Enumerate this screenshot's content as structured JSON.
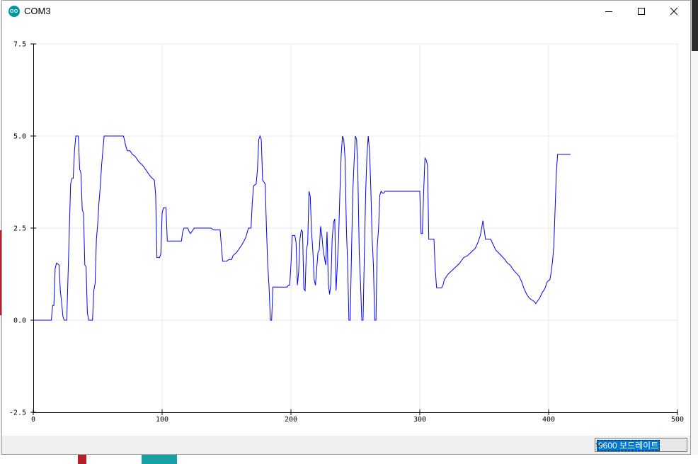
{
  "window": {
    "title": "COM3",
    "app_icon": "arduino-icon",
    "controls": [
      "minimize-icon",
      "maximize-icon",
      "close-icon"
    ]
  },
  "chart_data": {
    "type": "line",
    "title": "",
    "xlabel": "",
    "ylabel": "",
    "xlim": [
      0,
      500
    ],
    "ylim": [
      -2.5,
      7.5
    ],
    "x_ticks": [
      0,
      100,
      200,
      300,
      400,
      500
    ],
    "y_ticks": [
      -2.5,
      0.0,
      2.5,
      5.0,
      7.5
    ],
    "x_tick_labels": [
      "0",
      "100",
      "200",
      "300",
      "400",
      "500"
    ],
    "y_tick_labels": [
      "-2.5",
      "0.0",
      "2.5",
      "5.0",
      "7.5"
    ],
    "grid": true,
    "line_color": "#0000ff",
    "series": [
      {
        "points": [
          [
            0,
            0
          ],
          [
            14,
            0
          ],
          [
            15,
            0.4
          ],
          [
            16,
            0.4
          ],
          [
            17,
            1.4
          ],
          [
            18,
            1.55
          ],
          [
            20,
            1.5
          ],
          [
            21,
            0.8
          ],
          [
            22,
            0.5
          ],
          [
            23,
            0.1
          ],
          [
            24,
            0
          ],
          [
            26,
            0
          ],
          [
            27,
            1.2
          ],
          [
            28,
            2.5
          ],
          [
            29,
            3.7
          ],
          [
            30,
            3.85
          ],
          [
            31,
            3.85
          ],
          [
            32,
            4.6
          ],
          [
            33,
            5
          ],
          [
            35,
            5
          ],
          [
            36,
            4.1
          ],
          [
            37,
            4.0
          ],
          [
            38,
            3.0
          ],
          [
            39,
            2.9
          ],
          [
            40,
            1.5
          ],
          [
            41,
            1.45
          ],
          [
            42,
            0.2
          ],
          [
            43,
            0
          ],
          [
            46,
            0
          ],
          [
            47,
            0.8
          ],
          [
            48,
            1.0
          ],
          [
            49,
            2.2
          ],
          [
            50,
            2.6
          ],
          [
            51,
            3.2
          ],
          [
            52,
            3.6
          ],
          [
            53,
            4.2
          ],
          [
            54,
            4.6
          ],
          [
            55,
            5
          ],
          [
            70,
            5
          ],
          [
            72,
            4.7
          ],
          [
            73,
            4.6
          ],
          [
            75,
            4.6
          ],
          [
            77,
            4.5
          ],
          [
            79,
            4.45
          ],
          [
            80,
            4.4
          ],
          [
            82,
            4.3
          ],
          [
            85,
            4.2
          ],
          [
            88,
            4.05
          ],
          [
            91,
            3.9
          ],
          [
            94,
            3.8
          ],
          [
            95,
            3.4
          ],
          [
            96,
            1.7
          ],
          [
            98,
            1.7
          ],
          [
            99,
            1.8
          ],
          [
            100,
            2.9
          ],
          [
            101,
            3.05
          ],
          [
            103,
            3.05
          ],
          [
            104,
            2.15
          ],
          [
            115,
            2.15
          ],
          [
            116,
            2.4
          ],
          [
            117,
            2.5
          ],
          [
            120,
            2.5
          ],
          [
            121,
            2.4
          ],
          [
            122,
            2.35
          ],
          [
            124,
            2.45
          ],
          [
            125,
            2.5
          ],
          [
            138,
            2.5
          ],
          [
            140,
            2.45
          ],
          [
            145,
            2.45
          ],
          [
            147,
            1.6
          ],
          [
            150,
            1.6
          ],
          [
            152,
            1.65
          ],
          [
            154,
            1.65
          ],
          [
            155,
            1.75
          ],
          [
            158,
            1.85
          ],
          [
            162,
            2.05
          ],
          [
            165,
            2.25
          ],
          [
            167,
            2.5
          ],
          [
            169,
            2.5
          ],
          [
            170,
            3.2
          ],
          [
            171,
            3.65
          ],
          [
            173,
            3.7
          ],
          [
            174,
            4.1
          ],
          [
            175,
            4.9
          ],
          [
            176,
            5
          ],
          [
            177,
            4.9
          ],
          [
            178,
            3.8
          ],
          [
            180,
            3.7
          ],
          [
            181,
            2.5
          ],
          [
            182,
            1.5
          ],
          [
            183,
            0.9
          ],
          [
            184,
            0
          ],
          [
            185,
            0
          ],
          [
            186,
            0.9
          ],
          [
            197,
            0.9
          ],
          [
            198,
            0.95
          ],
          [
            199,
            0.95
          ],
          [
            200,
            1.5
          ],
          [
            201,
            2.3
          ],
          [
            203,
            2.3
          ],
          [
            204,
            2.1
          ],
          [
            205,
            0.95
          ],
          [
            206,
            1.3
          ],
          [
            207,
            2.2
          ],
          [
            208,
            2.45
          ],
          [
            209,
            2.4
          ],
          [
            210,
            0.85
          ],
          [
            211,
            0.8
          ],
          [
            212,
            1.9
          ],
          [
            213,
            2.1
          ],
          [
            214,
            3.5
          ],
          [
            215,
            3.35
          ],
          [
            216,
            2.4
          ],
          [
            217,
            1.9
          ],
          [
            218,
            1.1
          ],
          [
            219,
            0.95
          ],
          [
            220,
            1.4
          ],
          [
            221,
            1.85
          ],
          [
            222,
            1.9
          ],
          [
            223,
            2.55
          ],
          [
            224,
            2.3
          ],
          [
            225,
            1.9
          ],
          [
            226,
            1.7
          ],
          [
            227,
            1.5
          ],
          [
            228,
            2.4
          ],
          [
            229,
            1.0
          ],
          [
            230,
            0.7
          ],
          [
            231,
            1.0
          ],
          [
            232,
            2.2
          ],
          [
            233,
            2.65
          ],
          [
            234,
            2.75
          ],
          [
            235,
            0.8
          ],
          [
            236,
            1.5
          ],
          [
            237,
            2.2
          ],
          [
            238,
            3.5
          ],
          [
            239,
            4.5
          ],
          [
            240,
            5
          ],
          [
            241,
            4.9
          ],
          [
            242,
            4.4
          ],
          [
            243,
            2.5
          ],
          [
            244,
            1.5
          ],
          [
            245,
            0
          ],
          [
            246,
            0
          ],
          [
            247,
            1.8
          ],
          [
            248,
            3.5
          ],
          [
            249,
            4.3
          ],
          [
            250,
            5
          ],
          [
            251,
            4.9
          ],
          [
            252,
            3.9
          ],
          [
            253,
            1.8
          ],
          [
            254,
            1.0
          ],
          [
            255,
            0
          ],
          [
            256,
            0
          ],
          [
            257,
            1.8
          ],
          [
            258,
            3.5
          ],
          [
            259,
            4.5
          ],
          [
            260,
            5
          ],
          [
            261,
            4.6
          ],
          [
            262,
            3.6
          ],
          [
            263,
            2.2
          ],
          [
            264,
            1.5
          ],
          [
            265,
            0
          ],
          [
            266,
            0
          ],
          [
            267,
            2.0
          ],
          [
            268,
            2.5
          ],
          [
            269,
            3.4
          ],
          [
            270,
            3.5
          ],
          [
            271,
            3.45
          ],
          [
            272,
            3.45
          ],
          [
            273,
            3.5
          ],
          [
            300,
            3.5
          ],
          [
            301,
            2.35
          ],
          [
            302,
            2.35
          ],
          [
            303,
            3.5
          ],
          [
            304,
            4.4
          ],
          [
            305,
            4.35
          ],
          [
            306,
            4.2
          ],
          [
            307,
            2.2
          ],
          [
            311,
            2.2
          ],
          [
            312,
            1.4
          ],
          [
            313,
            0.88
          ],
          [
            317,
            0.88
          ],
          [
            318,
            0.95
          ],
          [
            319,
            1.1
          ],
          [
            320,
            1.15
          ],
          [
            322,
            1.25
          ],
          [
            325,
            1.35
          ],
          [
            328,
            1.45
          ],
          [
            331,
            1.55
          ],
          [
            334,
            1.7
          ],
          [
            337,
            1.75
          ],
          [
            340,
            1.85
          ],
          [
            343,
            1.95
          ],
          [
            345,
            2.1
          ],
          [
            347,
            2.3
          ],
          [
            348,
            2.5
          ],
          [
            349,
            2.7
          ],
          [
            350,
            2.45
          ],
          [
            351,
            2.2
          ],
          [
            355,
            2.2
          ],
          [
            357,
            2.05
          ],
          [
            359,
            1.9
          ],
          [
            362,
            1.8
          ],
          [
            366,
            1.65
          ],
          [
            368,
            1.55
          ],
          [
            370,
            1.5
          ],
          [
            373,
            1.35
          ],
          [
            377,
            1.2
          ],
          [
            379,
            1.05
          ],
          [
            381,
            0.85
          ],
          [
            383,
            0.7
          ],
          [
            385,
            0.6
          ],
          [
            387,
            0.55
          ],
          [
            389,
            0.5
          ],
          [
            390,
            0.45
          ],
          [
            391,
            0.5
          ],
          [
            393,
            0.6
          ],
          [
            395,
            0.75
          ],
          [
            397,
            0.85
          ],
          [
            399,
            1.05
          ],
          [
            401,
            1.1
          ],
          [
            402,
            1.3
          ],
          [
            403,
            1.6
          ],
          [
            404,
            2.0
          ],
          [
            405,
            3.0
          ],
          [
            406,
            4.0
          ],
          [
            407,
            4.5
          ],
          [
            417,
            4.5
          ]
        ]
      }
    ]
  },
  "statusbar": {
    "baud_rate": "9600 보드레이트",
    "dropdown_icon": "chevron-down-icon"
  }
}
